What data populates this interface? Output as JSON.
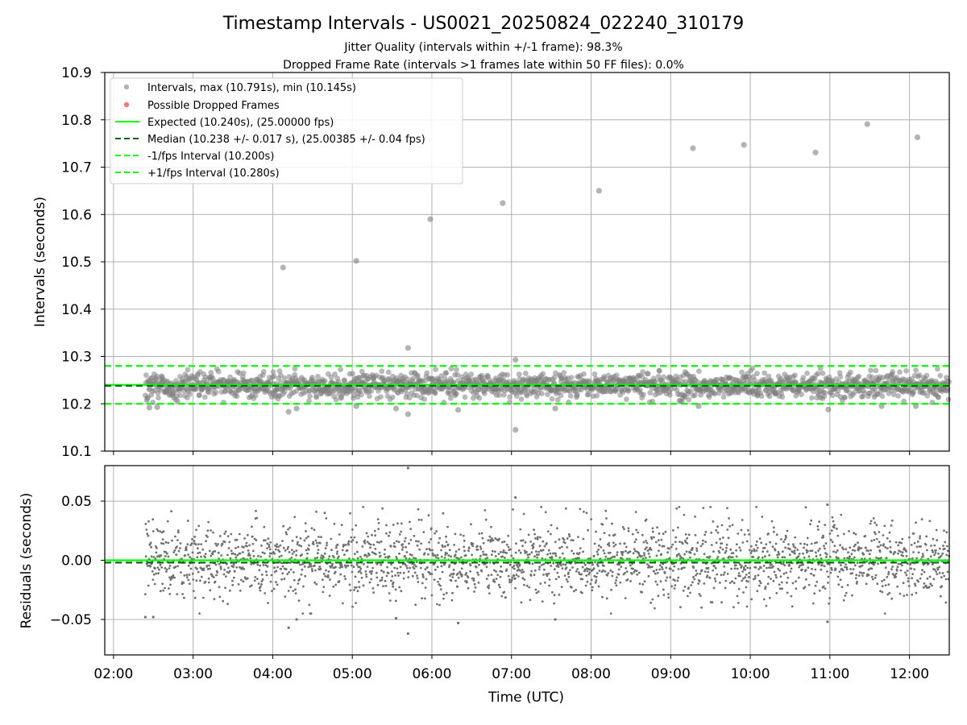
{
  "chart_data": [
    {
      "type": "scatter",
      "title": "Timestamp Intervals - US0021_20250824_022240_310179",
      "subtitle_lines": [
        "Jitter Quality (intervals within +/-1 frame): 98.3%",
        "Dropped Frame Rate (intervals >1 frames late within 50 FF files): 0.0%"
      ],
      "xlabel": "",
      "ylabel": "Intervals (seconds)",
      "xlim_hours": [
        1.89,
        12.5
      ],
      "ylim": [
        10.1,
        10.9
      ],
      "yticks": [
        "10.1",
        "10.2",
        "10.3",
        "10.4",
        "10.5",
        "10.6",
        "10.7",
        "10.8",
        "10.9"
      ],
      "grid": true,
      "legend_position": "top-left",
      "legend": [
        "Intervals, max (10.791s), min (10.145s)",
        "Possible Dropped Frames",
        "Expected (10.240s), (25.00000 fps)",
        "Median (10.238 +/- 0.017 s), (25.00385 +/- 0.04 fps)",
        "-1/fps Interval (10.200s)",
        "+1/fps Interval (10.280s)"
      ],
      "reference_lines": [
        {
          "name": "Expected (10.240s), (25.00000 fps)",
          "y": 10.24,
          "style": "solid",
          "color": "#00ff00"
        },
        {
          "name": "Median (10.238 +/- 0.017 s), (25.00385 +/- 0.04 fps)",
          "y": 10.238,
          "style": "dashed",
          "color": "#006400"
        },
        {
          "name": "-1/fps Interval (10.200s)",
          "y": 10.2,
          "style": "dashed",
          "color": "#00ff00"
        },
        {
          "name": "+1/fps Interval (10.280s)",
          "y": 10.28,
          "style": "dashed",
          "color": "#00ff00"
        }
      ],
      "series": [
        {
          "name": "Intervals, max (10.791s), min (10.145s)",
          "color": "#808080",
          "x_range_hours": [
            2.4,
            12.5
          ],
          "band": [
            10.215,
            10.265
          ],
          "outliers": [
            {
              "x": 4.13,
              "y": 10.488
            },
            {
              "x": 5.05,
              "y": 10.502
            },
            {
              "x": 5.98,
              "y": 10.59
            },
            {
              "x": 6.89,
              "y": 10.624
            },
            {
              "x": 8.1,
              "y": 10.65
            },
            {
              "x": 9.28,
              "y": 10.74
            },
            {
              "x": 9.92,
              "y": 10.747
            },
            {
              "x": 10.82,
              "y": 10.731
            },
            {
              "x": 11.47,
              "y": 10.791
            },
            {
              "x": 12.1,
              "y": 10.763
            },
            {
              "x": 5.7,
              "y": 10.318
            },
            {
              "x": 7.05,
              "y": 10.293
            },
            {
              "x": 7.05,
              "y": 10.145
            },
            {
              "x": 5.7,
              "y": 10.178
            },
            {
              "x": 4.2,
              "y": 10.183
            },
            {
              "x": 4.3,
              "y": 10.19
            },
            {
              "x": 2.45,
              "y": 10.192
            },
            {
              "x": 7.55,
              "y": 10.19
            },
            {
              "x": 10.98,
              "y": 10.188
            },
            {
              "x": 6.33,
              "y": 10.187
            },
            {
              "x": 5.55,
              "y": 10.19
            },
            {
              "x": 9.35,
              "y": 10.195
            },
            {
              "x": 11.65,
              "y": 10.195
            },
            {
              "x": 12.08,
              "y": 10.195
            },
            {
              "x": 5.05,
              "y": 10.195
            },
            {
              "x": 2.55,
              "y": 10.193
            }
          ]
        },
        {
          "name": "Possible Dropped Frames",
          "color": "#ff5555",
          "points": []
        }
      ]
    },
    {
      "type": "scatter",
      "title": "",
      "xlabel": "Time (UTC)",
      "ylabel": "Residuals (seconds)",
      "xlim_hours": [
        1.89,
        12.5
      ],
      "ylim": [
        -0.08,
        0.08
      ],
      "yticks": [
        "−0.05",
        "0.00",
        "0.05"
      ],
      "ytick_values": [
        -0.05,
        0.0,
        0.05
      ],
      "xticks": [
        "02:00",
        "03:00",
        "04:00",
        "05:00",
        "06:00",
        "07:00",
        "08:00",
        "09:00",
        "10:00",
        "11:00",
        "12:00"
      ],
      "xtick_values": [
        2,
        3,
        4,
        5,
        6,
        7,
        8,
        9,
        10,
        11,
        12
      ],
      "grid": true,
      "reference_lines": [
        {
          "y": 0.0,
          "style": "solid",
          "color": "#00ff00"
        },
        {
          "y": -0.002,
          "style": "dashed",
          "color": "#006400"
        }
      ],
      "series": [
        {
          "name": "Residuals",
          "color": "#707070",
          "x_range_hours": [
            2.4,
            12.5
          ],
          "spread_sd": 0.016,
          "outliers": [
            {
              "x": 5.7,
              "y": 0.078
            },
            {
              "x": 5.7,
              "y": -0.062
            },
            {
              "x": 7.05,
              "y": 0.053
            },
            {
              "x": 10.97,
              "y": 0.047
            },
            {
              "x": 10.97,
              "y": -0.052
            },
            {
              "x": 4.2,
              "y": -0.057
            },
            {
              "x": 2.4,
              "y": -0.048
            },
            {
              "x": 2.5,
              "y": -0.048
            },
            {
              "x": 4.3,
              "y": -0.05
            },
            {
              "x": 6.33,
              "y": -0.053
            },
            {
              "x": 7.55,
              "y": -0.05
            },
            {
              "x": 5.55,
              "y": -0.049
            }
          ]
        }
      ]
    }
  ]
}
